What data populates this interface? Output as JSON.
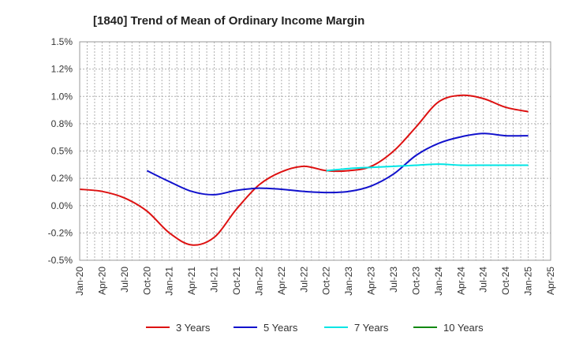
{
  "chart_data": {
    "type": "line",
    "title": "[1840]  Trend of Mean of Ordinary Income Margin",
    "xlabel": "",
    "ylabel": "",
    "ylim": [
      -0.5,
      1.5
    ],
    "y_ticks": [
      "1.5%",
      "1.2%",
      "1.0%",
      "0.8%",
      "0.5%",
      "0.2%",
      "0.0%",
      "-0.2%",
      "-0.5%"
    ],
    "y_tick_values": [
      1.5,
      1.25,
      1.0,
      0.75,
      0.5,
      0.25,
      0.0,
      -0.25,
      -0.5
    ],
    "x_ticks": [
      "Jan-20",
      "Apr-20",
      "Jul-20",
      "Oct-20",
      "Jan-21",
      "Apr-21",
      "Jul-21",
      "Oct-21",
      "Jan-22",
      "Apr-22",
      "Jul-22",
      "Oct-22",
      "Jan-23",
      "Apr-23",
      "Jul-23",
      "Oct-23",
      "Jan-24",
      "Apr-24",
      "Jul-24",
      "Oct-24",
      "Jan-25",
      "Apr-25"
    ],
    "grid": true,
    "legend_position": "bottom",
    "series": [
      {
        "name": "3 Years",
        "color": "#dd1111",
        "x": [
          "Jan-20",
          "Apr-20",
          "Jul-20",
          "Oct-20",
          "Jan-21",
          "Apr-21",
          "Jul-21",
          "Oct-21",
          "Jan-22",
          "Apr-22",
          "Jul-22",
          "Oct-22",
          "Jan-23",
          "Apr-23",
          "Jul-23",
          "Oct-23",
          "Jan-24",
          "Apr-24",
          "Jul-24",
          "Oct-24",
          "Jan-25"
        ],
        "values": [
          0.15,
          0.13,
          0.07,
          -0.05,
          -0.25,
          -0.36,
          -0.29,
          -0.03,
          0.19,
          0.31,
          0.36,
          0.32,
          0.32,
          0.36,
          0.5,
          0.72,
          0.95,
          1.01,
          0.98,
          0.9,
          0.86
        ]
      },
      {
        "name": "5 Years",
        "color": "#1111cc",
        "x": [
          "Oct-20",
          "Jan-21",
          "Apr-21",
          "Jul-21",
          "Oct-21",
          "Jan-22",
          "Apr-22",
          "Jul-22",
          "Oct-22",
          "Jan-23",
          "Apr-23",
          "Jul-23",
          "Oct-23",
          "Jan-24",
          "Apr-24",
          "Jul-24",
          "Oct-24",
          "Jan-25"
        ],
        "values": [
          0.32,
          0.22,
          0.13,
          0.1,
          0.14,
          0.16,
          0.15,
          0.13,
          0.12,
          0.13,
          0.18,
          0.29,
          0.46,
          0.57,
          0.63,
          0.66,
          0.64,
          0.64
        ]
      },
      {
        "name": "7 Years",
        "color": "#00e5e5",
        "x": [
          "Oct-22",
          "Jan-23",
          "Apr-23",
          "Jul-23",
          "Oct-23",
          "Jan-24",
          "Apr-24",
          "Jul-24",
          "Oct-24",
          "Jan-25"
        ],
        "values": [
          0.32,
          0.34,
          0.35,
          0.36,
          0.37,
          0.38,
          0.37,
          0.37,
          0.37,
          0.37
        ]
      },
      {
        "name": "10 Years",
        "color": "#118811",
        "x": [],
        "values": []
      }
    ]
  }
}
